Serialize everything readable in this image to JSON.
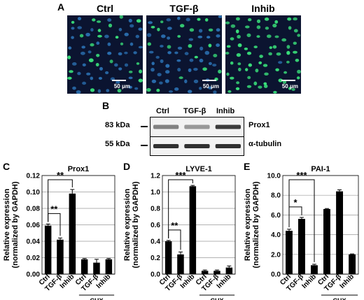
{
  "panel_a": {
    "letter": "A",
    "images": [
      {
        "label": "Ctrl",
        "scale_text": "50 μm"
      },
      {
        "label": "TGF-β",
        "scale_text": "50 μm"
      },
      {
        "label": "Inhib",
        "scale_text": "50 μm"
      }
    ]
  },
  "panel_b": {
    "letter": "B",
    "lanes": [
      "Ctrl",
      "TGF-β",
      "Inhib"
    ],
    "rows": [
      {
        "kda": "83 kDa",
        "protein": "Prox1",
        "band_intensity": [
          0.55,
          0.45,
          0.85
        ]
      },
      {
        "kda": "55 kDa",
        "protein": "α-tubulin",
        "band_intensity": [
          0.9,
          0.9,
          0.9
        ]
      }
    ]
  },
  "chart_data": [
    {
      "letter": "C",
      "type": "bar",
      "title": "Prox1",
      "ylabel": "Relative expression (normalized by GAPDH)",
      "ylim": [
        0,
        0.12
      ],
      "yticks": [
        "0.00",
        "0.02",
        "0.04",
        "0.06",
        "0.08",
        "0.10",
        "0.12"
      ],
      "categories": [
        "Ctrl",
        "TGF-β",
        "Inhib",
        "Ctrl",
        "TGF-β",
        "Inhib"
      ],
      "values": [
        0.059,
        0.042,
        0.098,
        0.018,
        0.014,
        0.018
      ],
      "errors": [
        0.002,
        0.002,
        0.005,
        0.001,
        0.004,
        0.001
      ],
      "group_label": "CHX",
      "significance": [
        {
          "from": 0,
          "to": 1,
          "label": "**"
        },
        {
          "from": 0,
          "to": 2,
          "label": "**"
        }
      ]
    },
    {
      "letter": "D",
      "type": "bar",
      "title": "LYVE-1",
      "ylabel": "Relative expression (normalized by GAPDH)",
      "ylim": [
        0,
        1.2
      ],
      "yticks": [
        "0.0",
        "0.2",
        "0.4",
        "0.6",
        "0.8",
        "1.0",
        "1.2"
      ],
      "categories": [
        "Ctrl",
        "TGF-β",
        "Inhib",
        "Ctrl",
        "TGF-β",
        "Inhib"
      ],
      "values": [
        0.4,
        0.24,
        1.07,
        0.04,
        0.04,
        0.08
      ],
      "errors": [
        0.01,
        0.03,
        0.01,
        0.01,
        0.01,
        0.02
      ],
      "group_label": "CHX",
      "significance": [
        {
          "from": 0,
          "to": 1,
          "label": "**"
        },
        {
          "from": 0,
          "to": 2,
          "label": "***"
        }
      ]
    },
    {
      "letter": "E",
      "type": "bar",
      "title": "PAI-1",
      "ylabel": "Relative expression (normalized by GAPDH)",
      "ylim": [
        0,
        10.0
      ],
      "yticks": [
        "0.0",
        "2.0",
        "4.0",
        "6.0",
        "8.0",
        "10.0"
      ],
      "categories": [
        "Ctrl",
        "TGF-β",
        "Inhib",
        "Ctrl",
        "TGF-β",
        "Inhib"
      ],
      "values": [
        4.4,
        5.6,
        0.9,
        6.6,
        8.4,
        2.0
      ],
      "errors": [
        0.15,
        0.15,
        0.1,
        0.05,
        0.15,
        0.05
      ],
      "group_label": "CHX",
      "significance": [
        {
          "from": 0,
          "to": 1,
          "label": "*"
        },
        {
          "from": 0,
          "to": 2,
          "label": "***"
        }
      ]
    }
  ]
}
